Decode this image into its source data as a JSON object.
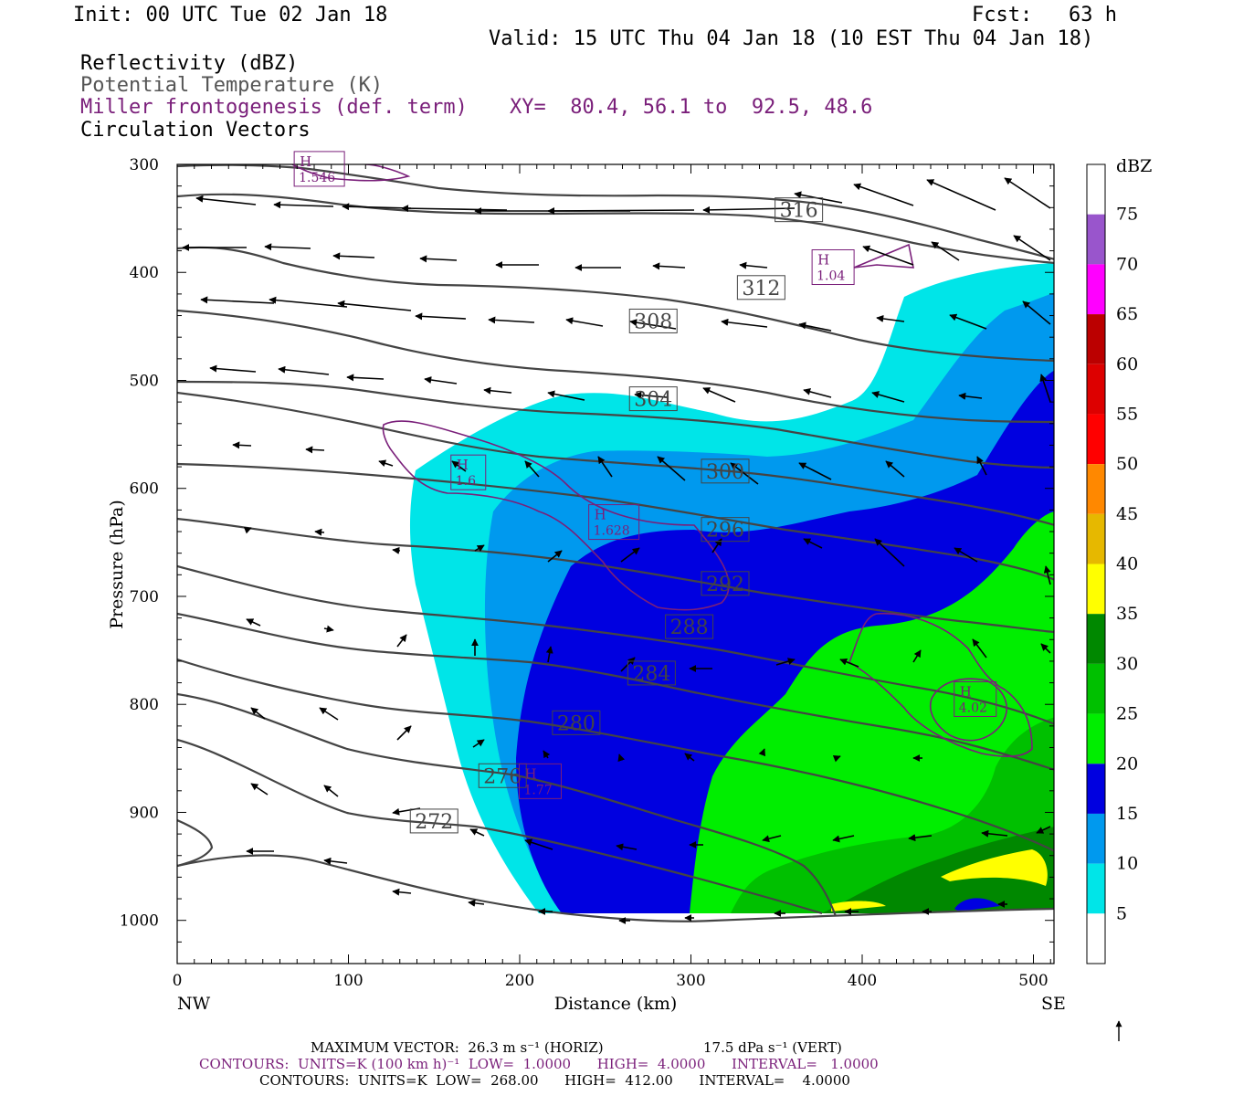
{
  "header": {
    "init": "Init: 00 UTC Tue 02 Jan 18",
    "fcst": "Fcst:   63 h",
    "valid": "Valid: 15 UTC Thu 04 Jan 18 (10 EST Thu 04 Jan 18)",
    "fields": [
      {
        "label": "Reflectivity (dBZ)",
        "color": "#000000"
      },
      {
        "label": "Potential Temperature (K)",
        "color": "#555555"
      },
      {
        "label": "Miller frontogenesis (def. term)",
        "color": "#7a1f7a"
      },
      {
        "label": "Circulation Vectors",
        "color": "#000000"
      }
    ],
    "xy": "XY=  80.4, 56.1 to  92.5, 48.6"
  },
  "chart_data": {
    "type": "cross-section",
    "xlabel": "Distance (km)",
    "ylabel": "Pressure (hPa)",
    "xlim": [
      0,
      512
    ],
    "ylim": [
      1040,
      300
    ],
    "x_ticks": [
      0,
      100,
      200,
      300,
      400,
      500
    ],
    "y_ticks": [
      300,
      400,
      500,
      600,
      700,
      800,
      900,
      1000
    ],
    "x_end_labels": {
      "left": "NW",
      "right": "SE"
    },
    "colorbar": {
      "title": "dBZ",
      "levels": [
        5,
        10,
        15,
        20,
        25,
        30,
        35,
        40,
        45,
        50,
        55,
        60,
        65,
        70,
        75
      ],
      "colors": [
        "#ffffff",
        "#00e5e8",
        "#0099ee",
        "#0000e0",
        "#00ee00",
        "#00c000",
        "#008800",
        "#ffff00",
        "#e6b800",
        "#ff8800",
        "#ff0000",
        "#dd0000",
        "#bb0000",
        "#ff00ff",
        "#9955cc",
        "#ffffff"
      ]
    },
    "theta_contours": {
      "units": "K",
      "low": 268,
      "high": 412,
      "interval": 4,
      "labels": [
        {
          "value": "272",
          "x": 150,
          "p": 908
        },
        {
          "value": "276",
          "x": 190,
          "p": 866
        },
        {
          "value": "280",
          "x": 233,
          "p": 817
        },
        {
          "value": "284",
          "x": 277,
          "p": 771
        },
        {
          "value": "288",
          "x": 299,
          "p": 728
        },
        {
          "value": "292",
          "x": 320,
          "p": 688
        },
        {
          "value": "296",
          "x": 320,
          "p": 638
        },
        {
          "value": "300",
          "x": 320,
          "p": 584
        },
        {
          "value": "304",
          "x": 278,
          "p": 517
        },
        {
          "value": "308",
          "x": 278,
          "p": 445
        },
        {
          "value": "312",
          "x": 341,
          "p": 414
        },
        {
          "value": "316",
          "x": 363,
          "p": 342
        }
      ]
    },
    "frontogenesis_maxima": [
      {
        "label": "H",
        "value": "1.546",
        "x": 83,
        "p": 305
      },
      {
        "label": "H",
        "value": "1.04",
        "x": 383,
        "p": 396
      },
      {
        "label": "H",
        "value": "1.6",
        "x": 170,
        "p": 586
      },
      {
        "label": "H",
        "value": "1.628",
        "x": 255,
        "p": 632
      },
      {
        "label": "H",
        "value": "4.02",
        "x": 466,
        "p": 796
      },
      {
        "label": "H",
        "value": "1.77",
        "x": 212,
        "p": 872
      }
    ]
  },
  "footer": {
    "max_vector": "MAXIMUM VECTOR:  26.3 m s⁻¹ (HORIZ)",
    "max_vector_vert": "17.5 dPa s⁻¹ (VERT)",
    "fronto_contours": "CONTOURS:  UNITS=K (100 km h)⁻¹  LOW=  1.0000      HIGH=  4.0000      INTERVAL=   1.0000",
    "theta_contours": "CONTOURS:  UNITS=K  LOW=  268.00      HIGH=  412.00      INTERVAL=    4.0000"
  }
}
